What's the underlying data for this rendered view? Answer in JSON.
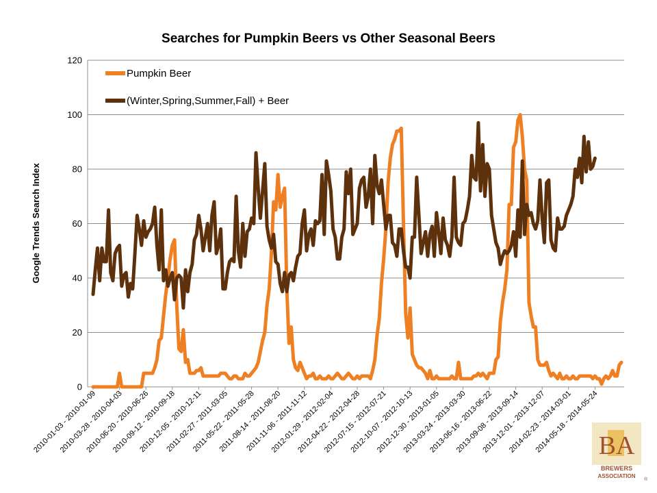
{
  "chart_data": {
    "type": "line",
    "title": "Searches for Pumpkin Beers vs Other Seasonal Beers",
    "ylabel": "Google Trends Search Index",
    "ylim": [
      0,
      120
    ],
    "yticks": [
      0,
      20,
      40,
      60,
      80,
      100,
      120
    ],
    "grid": "horizontal",
    "legend_position": "top-left",
    "x_tick_labels": [
      "2010-01-03 - 2010-01-09",
      "2010-03-28 - 2010-04-03",
      "2010-06-20 - 2010-06-26",
      "2010-09-12 - 2010-09-18",
      "2010-12-05 - 2010-12-11",
      "2011-02-27 - 2011-03-05",
      "2011-05-22 - 2011-05-28",
      "2011-08-14 - 2011-08-20",
      "2011-11-06 - 2011-11-12",
      "2012-01-29 - 2012-02-04",
      "2012-04-22 - 2012-04-28",
      "2012-07-15 - 2012-07-21",
      "2012-10-07 - 2012-10-13",
      "2012-12-30 - 2013-01-05",
      "2013-03-24 - 2013-03-30",
      "2013-06-16 - 2013-06-22",
      "2013-09-08 - 2013-09-14",
      "2013-12-01 - 2013-12-07",
      "2014-02-23 - 2014-03-01",
      "2014-05-18 - 2014-05-24"
    ],
    "series": [
      {
        "name": "Pumpkin Beer",
        "color": "#ee7f22",
        "values": [
          0,
          0,
          0,
          0,
          0,
          0,
          0,
          0,
          0,
          0,
          0,
          0,
          5,
          0,
          0,
          0,
          0,
          0,
          0,
          0,
          0,
          0,
          0,
          5,
          5,
          5,
          5,
          5,
          7,
          10,
          17,
          18,
          26,
          34,
          40,
          47,
          52,
          54,
          30,
          14,
          13,
          21,
          9,
          10,
          5,
          5,
          5,
          6,
          6,
          7,
          4,
          4,
          4,
          4,
          4,
          4,
          4,
          4,
          5,
          5,
          5,
          4,
          3,
          3,
          4,
          4,
          3,
          3,
          3,
          5,
          4,
          4,
          5,
          6,
          7,
          9,
          13,
          17,
          20,
          30,
          36,
          49,
          68,
          65,
          78,
          66,
          70,
          73,
          36,
          16,
          22,
          10,
          7,
          6,
          9,
          7,
          5,
          3,
          4,
          4,
          5,
          3,
          3,
          4,
          3,
          3,
          3,
          4,
          3,
          3,
          4,
          5,
          4,
          3,
          3,
          4,
          5,
          4,
          3,
          3,
          4,
          3,
          4,
          4,
          4,
          4,
          3,
          6,
          10,
          19,
          25,
          38,
          47,
          58,
          75,
          84,
          89,
          91,
          94,
          94,
          95,
          60,
          27,
          18,
          29,
          12,
          10,
          8,
          7,
          7,
          6,
          5,
          3,
          6,
          3,
          3,
          4,
          3,
          3,
          3,
          3,
          3,
          3,
          4,
          3,
          3,
          9,
          3,
          3,
          3,
          3,
          3,
          3,
          4,
          4,
          5,
          4,
          5,
          4,
          3,
          5,
          5,
          5,
          10,
          11,
          24,
          31,
          36,
          43,
          67,
          67,
          88,
          90,
          98,
          100,
          92,
          80,
          76,
          31,
          26,
          22,
          22,
          10,
          8,
          8,
          8,
          9,
          6,
          4,
          5,
          4,
          3,
          5,
          3,
          3,
          4,
          3,
          3,
          4,
          3,
          3,
          4,
          4,
          4,
          4,
          4,
          4,
          3,
          4,
          3,
          3,
          1,
          3,
          4,
          3,
          4,
          6,
          4,
          4,
          8,
          9
        ]
      },
      {
        "name": "(Winter,Spring,Summer,Fall) + Beer",
        "color": "#5e310d",
        "values": [
          34,
          43,
          51,
          39,
          51,
          46,
          46,
          65,
          42,
          39,
          49,
          51,
          52,
          37,
          41,
          42,
          33,
          38,
          36,
          49,
          63,
          58,
          52,
          61,
          55,
          57,
          58,
          60,
          66,
          52,
          43,
          65,
          39,
          43,
          37,
          40,
          42,
          32,
          40,
          41,
          40,
          29,
          43,
          35,
          42,
          45,
          54,
          56,
          63,
          58,
          50,
          55,
          60,
          50,
          63,
          68,
          49,
          52,
          58,
          36,
          36,
          42,
          46,
          47,
          46,
          70,
          50,
          44,
          60,
          48,
          57,
          58,
          62,
          60,
          86,
          73,
          62,
          72,
          82,
          59,
          54,
          51,
          56,
          46,
          45,
          38,
          35,
          42,
          35,
          41,
          42,
          39,
          44,
          48,
          49,
          60,
          65,
          50,
          56,
          58,
          52,
          61,
          60,
          61,
          78,
          56,
          83,
          78,
          72,
          58,
          55,
          47,
          47,
          55,
          58,
          79,
          71,
          80,
          56,
          58,
          60,
          73,
          76,
          77,
          66,
          70,
          80,
          60,
          85,
          74,
          71,
          76,
          67,
          58,
          63,
          63,
          53,
          52,
          48,
          58,
          58,
          50,
          44,
          44,
          40,
          55,
          55,
          77,
          63,
          49,
          53,
          57,
          48,
          56,
          59,
          48,
          64,
          57,
          49,
          62,
          54,
          52,
          48,
          55,
          77,
          55,
          53,
          52,
          60,
          61,
          65,
          70,
          85,
          77,
          76,
          97,
          72,
          89,
          70,
          82,
          80,
          63,
          58,
          53,
          51,
          45,
          48,
          50,
          49,
          50,
          52,
          57,
          48,
          65,
          55,
          83,
          56,
          67,
          63,
          64,
          60,
          58,
          61,
          76,
          62,
          53,
          75,
          76,
          54,
          51,
          50,
          62,
          58,
          58,
          59,
          63,
          65,
          67,
          70,
          80,
          77,
          84,
          75,
          92,
          79,
          90,
          80,
          81,
          84
        ]
      }
    ]
  },
  "logo": {
    "mark": "BA",
    "line1": "BREWERS",
    "line2": "ASSOCIATION",
    "symbol": "®"
  }
}
